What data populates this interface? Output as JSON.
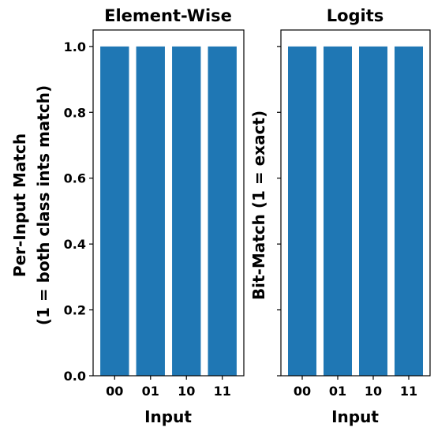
{
  "chart_data": [
    {
      "type": "bar",
      "title": "Element-Wise",
      "xlabel": "Input",
      "ylabel_lines": [
        "Per-Input Match",
        "(1 = both class ints match)"
      ],
      "categories": [
        "00",
        "01",
        "10",
        "11"
      ],
      "values": [
        1.0,
        1.0,
        1.0,
        1.0
      ],
      "ylim": [
        0,
        1.05
      ],
      "yticks": [
        "0.0",
        "0.2",
        "0.4",
        "0.6",
        "0.8",
        "1.0"
      ],
      "show_ytick_labels": true,
      "bar_color": "#1f77b4",
      "grid": false
    },
    {
      "type": "bar",
      "title": "Logits",
      "xlabel": "Input",
      "ylabel_lines": [
        "Bit-Match (1 = exact)"
      ],
      "categories": [
        "00",
        "01",
        "10",
        "11"
      ],
      "values": [
        1.0,
        1.0,
        1.0,
        1.0
      ],
      "ylim": [
        0,
        1.05
      ],
      "yticks": [
        "0.0",
        "0.2",
        "0.4",
        "0.6",
        "0.8",
        "1.0"
      ],
      "show_ytick_labels": false,
      "bar_color": "#1f77b4",
      "grid": false
    }
  ]
}
